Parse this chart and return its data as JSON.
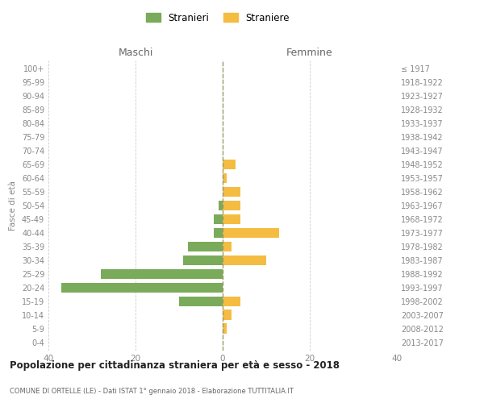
{
  "age_groups": [
    "0-4",
    "5-9",
    "10-14",
    "15-19",
    "20-24",
    "25-29",
    "30-34",
    "35-39",
    "40-44",
    "45-49",
    "50-54",
    "55-59",
    "60-64",
    "65-69",
    "70-74",
    "75-79",
    "80-84",
    "85-89",
    "90-94",
    "95-99",
    "100+"
  ],
  "birth_years": [
    "2013-2017",
    "2008-2012",
    "2003-2007",
    "1998-2002",
    "1993-1997",
    "1988-1992",
    "1983-1987",
    "1978-1982",
    "1973-1977",
    "1968-1972",
    "1963-1967",
    "1958-1962",
    "1953-1957",
    "1948-1952",
    "1943-1947",
    "1938-1942",
    "1933-1937",
    "1928-1932",
    "1923-1927",
    "1918-1922",
    "≤ 1917"
  ],
  "maschi": [
    0,
    0,
    0,
    10,
    37,
    28,
    9,
    8,
    2,
    2,
    1,
    0,
    0,
    0,
    0,
    0,
    0,
    0,
    0,
    0,
    0
  ],
  "femmine": [
    0,
    1,
    2,
    4,
    0,
    0,
    10,
    2,
    13,
    4,
    4,
    4,
    1,
    3,
    0,
    0,
    0,
    0,
    0,
    0,
    0
  ],
  "color_maschi": "#7aab5a",
  "color_femmine": "#f5bc42",
  "title_main": "Popolazione per cittadinanza straniera per età e sesso - 2018",
  "title_sub": "COMUNE DI ORTELLE (LE) - Dati ISTAT 1° gennaio 2018 - Elaborazione TUTTITALIA.IT",
  "xlabel_left": "Maschi",
  "xlabel_right": "Femmine",
  "ylabel_left": "Fasce di età",
  "legend_maschi": "Stranieri",
  "legend_femmine": "Straniere",
  "xlim": 40,
  "bg_color": "#ffffff",
  "grid_color": "#cccccc"
}
